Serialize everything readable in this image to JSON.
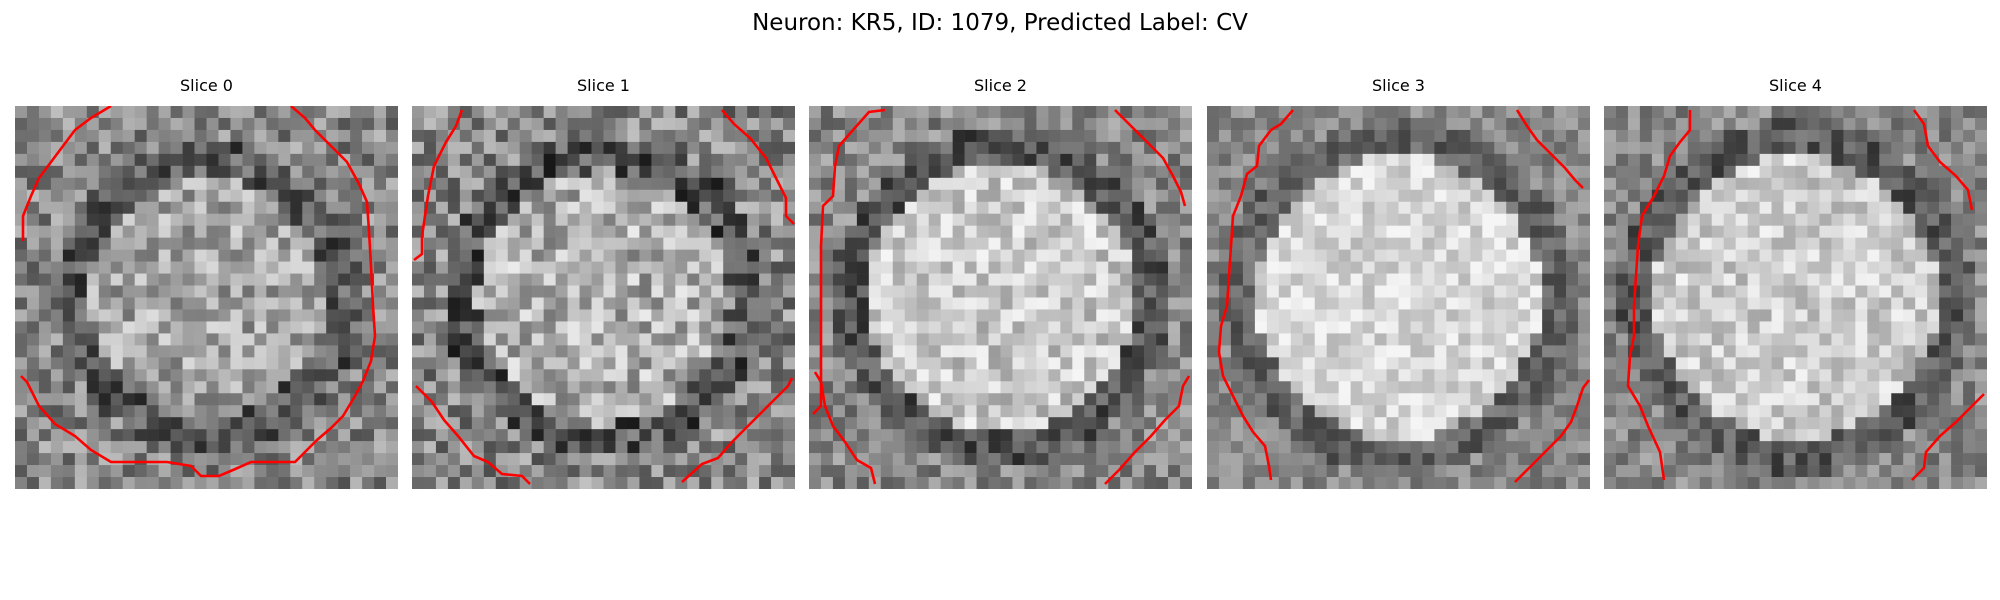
{
  "figure": {
    "title": "Neuron: KR5, ID: 1079, Predicted Label: CV",
    "contour_color": "#ff0000",
    "panels": [
      {
        "title": "Slice 0"
      },
      {
        "title": "Slice 1"
      },
      {
        "title": "Slice 2"
      },
      {
        "title": "Slice 3"
      },
      {
        "title": "Slice 4"
      }
    ]
  }
}
